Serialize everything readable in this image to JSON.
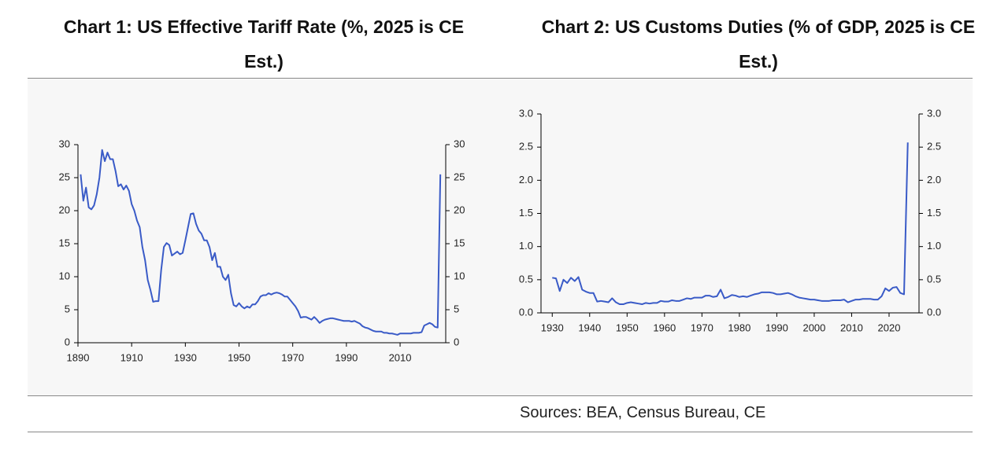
{
  "chart_data": [
    {
      "type": "line",
      "title": "Chart 1: US Effective Tariff Rate (%, 2025 is CE Est.)",
      "x": [
        1891,
        1892,
        1893,
        1894,
        1895,
        1896,
        1897,
        1898,
        1899,
        1900,
        1901,
        1902,
        1903,
        1904,
        1905,
        1906,
        1907,
        1908,
        1909,
        1910,
        1911,
        1912,
        1913,
        1914,
        1915,
        1916,
        1917,
        1918,
        1919,
        1920,
        1921,
        1922,
        1923,
        1924,
        1925,
        1926,
        1927,
        1928,
        1929,
        1930,
        1931,
        1932,
        1933,
        1934,
        1935,
        1936,
        1937,
        1938,
        1939,
        1940,
        1941,
        1942,
        1943,
        1944,
        1945,
        1946,
        1947,
        1948,
        1949,
        1950,
        1951,
        1952,
        1953,
        1954,
        1955,
        1956,
        1957,
        1958,
        1959,
        1960,
        1961,
        1962,
        1963,
        1964,
        1965,
        1966,
        1967,
        1968,
        1969,
        1970,
        1971,
        1972,
        1973,
        1974,
        1975,
        1976,
        1977,
        1978,
        1979,
        1980,
        1981,
        1982,
        1983,
        1984,
        1985,
        1986,
        1987,
        1988,
        1989,
        1990,
        1991,
        1992,
        1993,
        1994,
        1995,
        1996,
        1997,
        1998,
        1999,
        2000,
        2001,
        2002,
        2003,
        2004,
        2005,
        2006,
        2007,
        2008,
        2009,
        2010,
        2011,
        2012,
        2013,
        2014,
        2015,
        2016,
        2017,
        2018,
        2019,
        2020,
        2021,
        2022,
        2023,
        2024,
        2025
      ],
      "series": [
        {
          "color": "#3a5bc7",
          "values": [
            25.5,
            21.5,
            23.5,
            20.5,
            20.2,
            20.8,
            22.5,
            25,
            29.2,
            27.5,
            28.8,
            27.8,
            27.8,
            26,
            23.7,
            24,
            23.2,
            23.8,
            23,
            21,
            20,
            18.5,
            17.5,
            14.5,
            12.5,
            9.5,
            8,
            6.2,
            6.3,
            6.3,
            11,
            14.5,
            15.1,
            14.8,
            13.2,
            13.5,
            13.8,
            13.4,
            13.6,
            15.5,
            17.5,
            19.5,
            19.6,
            18,
            17,
            16.5,
            15.5,
            15.5,
            14.5,
            12.5,
            13.6,
            11.5,
            11.5,
            10,
            9.5,
            10.3,
            7.5,
            5.7,
            5.5,
            6,
            5.5,
            5.2,
            5.5,
            5.3,
            5.8,
            5.8,
            6.3,
            7,
            7.2,
            7.2,
            7.5,
            7.3,
            7.5,
            7.6,
            7.5,
            7.3,
            7,
            7,
            6.5,
            6,
            5.5,
            4.8,
            3.8,
            3.9,
            3.9,
            3.7,
            3.5,
            3.9,
            3.5,
            3.0,
            3.3,
            3.5,
            3.6,
            3.7,
            3.7,
            3.6,
            3.5,
            3.4,
            3.3,
            3.3,
            3.3,
            3.2,
            3.3,
            3.1,
            2.9,
            2.5,
            2.3,
            2.2,
            2.0,
            1.8,
            1.7,
            1.7,
            1.7,
            1.5,
            1.5,
            1.4,
            1.4,
            1.3,
            1.2,
            1.4,
            1.4,
            1.4,
            1.4,
            1.4,
            1.5,
            1.5,
            1.5,
            1.6,
            2.6,
            2.8,
            3.0,
            2.8,
            2.4,
            2.3,
            25.5
          ]
        }
      ],
      "xlim": [
        1890,
        2027
      ],
      "xticks": [
        1890,
        1910,
        1930,
        1950,
        1970,
        1990,
        2010
      ],
      "ylim": [
        0,
        30
      ],
      "yticks": [
        0,
        5,
        10,
        15,
        20,
        25,
        30
      ],
      "right_axis": true
    },
    {
      "type": "line",
      "title": "Chart 2: US Customs Duties (% of GDP, 2025 is CE Est.)",
      "x": [
        1930,
        1931,
        1932,
        1933,
        1934,
        1935,
        1936,
        1937,
        1938,
        1939,
        1940,
        1941,
        1942,
        1943,
        1944,
        1945,
        1946,
        1947,
        1948,
        1949,
        1950,
        1951,
        1952,
        1953,
        1954,
        1955,
        1956,
        1957,
        1958,
        1959,
        1960,
        1961,
        1962,
        1963,
        1964,
        1965,
        1966,
        1967,
        1968,
        1969,
        1970,
        1971,
        1972,
        1973,
        1974,
        1975,
        1976,
        1977,
        1978,
        1979,
        1980,
        1981,
        1982,
        1983,
        1984,
        1985,
        1986,
        1987,
        1988,
        1989,
        1990,
        1991,
        1992,
        1993,
        1994,
        1995,
        1996,
        1997,
        1998,
        1999,
        2000,
        2001,
        2002,
        2003,
        2004,
        2005,
        2006,
        2007,
        2008,
        2009,
        2010,
        2011,
        2012,
        2013,
        2014,
        2015,
        2016,
        2017,
        2018,
        2019,
        2020,
        2021,
        2022,
        2023,
        2024,
        2025
      ],
      "series": [
        {
          "color": "#3a5bc7",
          "values": [
            0.53,
            0.52,
            0.33,
            0.5,
            0.45,
            0.53,
            0.48,
            0.54,
            0.35,
            0.32,
            0.3,
            0.3,
            0.17,
            0.18,
            0.17,
            0.16,
            0.22,
            0.16,
            0.13,
            0.13,
            0.15,
            0.16,
            0.15,
            0.14,
            0.13,
            0.15,
            0.14,
            0.15,
            0.15,
            0.18,
            0.17,
            0.17,
            0.19,
            0.18,
            0.18,
            0.2,
            0.22,
            0.21,
            0.23,
            0.23,
            0.23,
            0.26,
            0.26,
            0.24,
            0.25,
            0.35,
            0.22,
            0.24,
            0.27,
            0.26,
            0.24,
            0.25,
            0.24,
            0.26,
            0.28,
            0.29,
            0.31,
            0.31,
            0.31,
            0.3,
            0.28,
            0.28,
            0.29,
            0.3,
            0.28,
            0.25,
            0.23,
            0.22,
            0.21,
            0.2,
            0.2,
            0.19,
            0.18,
            0.18,
            0.18,
            0.19,
            0.19,
            0.19,
            0.2,
            0.16,
            0.18,
            0.2,
            0.2,
            0.21,
            0.21,
            0.21,
            0.2,
            0.2,
            0.25,
            0.37,
            0.33,
            0.38,
            0.39,
            0.3,
            0.28,
            2.57
          ]
        }
      ],
      "xlim": [
        1927,
        2028
      ],
      "xticks": [
        1930,
        1940,
        1950,
        1960,
        1970,
        1980,
        1990,
        2000,
        2010,
        2020
      ],
      "ylim": [
        0,
        3
      ],
      "yticks": [
        {
          "value": 0,
          "label": "0.0"
        },
        {
          "value": 0.5,
          "label": "0.5"
        },
        {
          "value": 1,
          "label": "1.0"
        },
        {
          "value": 1.5,
          "label": "1.5"
        },
        {
          "value": 2,
          "label": "2.0"
        },
        {
          "value": 2.5,
          "label": "2.5"
        },
        {
          "value": 3,
          "label": "3.0"
        }
      ],
      "right_axis": true
    }
  ],
  "source": "Sources: BEA, Census Bureau, CE"
}
